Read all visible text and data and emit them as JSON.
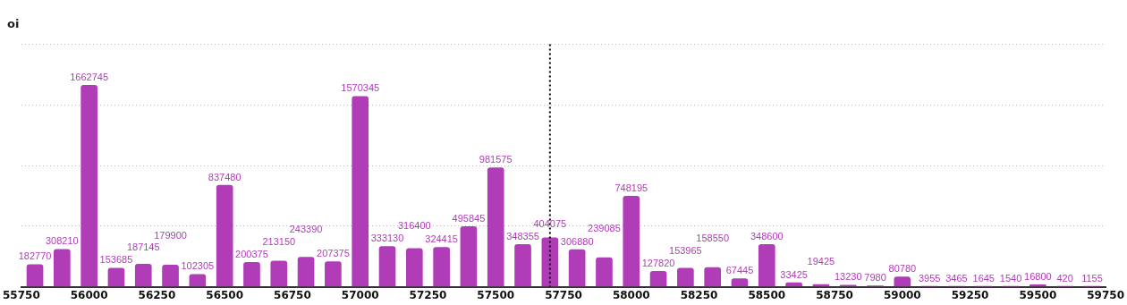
{
  "chart_data": {
    "type": "bar",
    "title": "oi",
    "x": [
      55800,
      55900,
      56000,
      56100,
      56200,
      56300,
      56400,
      56500,
      56600,
      56700,
      56800,
      56900,
      57000,
      57100,
      57200,
      57300,
      57400,
      57500,
      57600,
      57700,
      57800,
      57900,
      58000,
      58100,
      58200,
      58300,
      58400,
      58500,
      58600,
      58700,
      58800,
      58900,
      59000,
      59100,
      59200,
      59300,
      59400,
      59500,
      59600,
      59700
    ],
    "values": [
      182770,
      308210,
      1662745,
      153685,
      187145,
      179900,
      102305,
      837480,
      200375,
      213150,
      243390,
      207375,
      1570345,
      333130,
      316400,
      324415,
      495845,
      981575,
      348355,
      404075,
      306880,
      239085,
      748195,
      127820,
      153965,
      158550,
      67445,
      348600,
      33425,
      19425,
      13230,
      7980,
      80780,
      3955,
      3465,
      1645,
      1540,
      16800,
      420,
      1155
    ],
    "color": "#b03cb8",
    "data_labels": true,
    "xlim": [
      55750,
      59750
    ],
    "xticks": [
      55750,
      56000,
      56250,
      56500,
      56750,
      57000,
      57250,
      57500,
      57750,
      58000,
      58250,
      58500,
      58750,
      59000,
      59250,
      59500,
      59750
    ],
    "tick_labels": "x",
    "grid": "y",
    "legend": false,
    "ref_lines": [
      {
        "axis": "x",
        "value": 57700,
        "line_style": "dotted",
        "color": "#000000"
      }
    ]
  }
}
